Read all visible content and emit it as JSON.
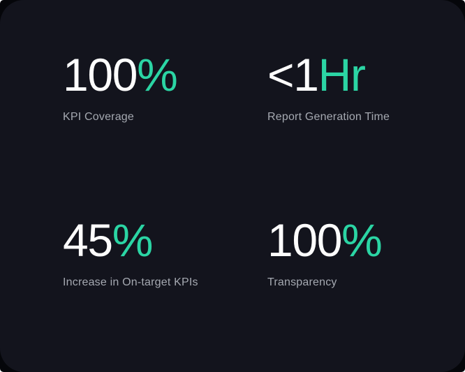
{
  "colors": {
    "accent": "#2bd5a4",
    "value": "#fdfdfd",
    "label": "#a5a9b1",
    "card_background": "#13141d",
    "outer_background": "#05060a"
  },
  "stats": [
    {
      "value_main": "100",
      "value_accent": "%",
      "label": "KPI Coverage"
    },
    {
      "value_main": "<1",
      "value_accent": "Hr",
      "label": "Report Generation Time"
    },
    {
      "value_main": "45",
      "value_accent": "%",
      "label": "Increase in On-target KPIs"
    },
    {
      "value_main": "100",
      "value_accent": "%",
      "label": "Transparency"
    }
  ]
}
